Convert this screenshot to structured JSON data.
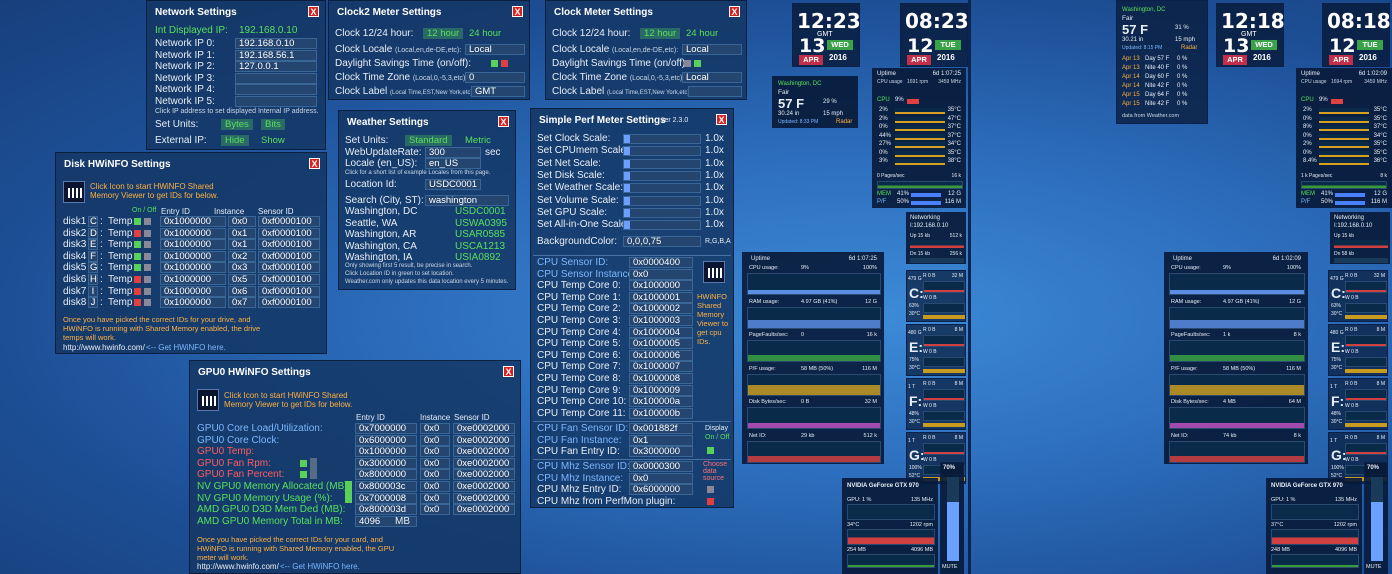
{
  "network": {
    "title": "Network Settings",
    "int_label": "Int Displayed IP:",
    "int_value": "192.168.0.10",
    "ip_labels": [
      "Network IP 0:",
      "Network IP 1:",
      "Network IP 2:",
      "Network IP 3:",
      "Network IP 4:",
      "Network IP 5:"
    ],
    "ip_values": [
      "192.168.0.10",
      "192.168.56.1",
      "127.0.0.1",
      "",
      "",
      ""
    ],
    "note": "Click IP address to set displayed Internal IP address.",
    "units_label": "Set Units:",
    "units_bytes": "Bytes",
    "units_bits": "Bits",
    "ext_label": "External IP:",
    "ext_hide": "Hide",
    "ext_show": "Show"
  },
  "clock2": {
    "title": "Clock2 Meter Settings",
    "hour_label": "Clock 12/24 hour:",
    "h12": "12 hour",
    "h24": "24 hour",
    "locale_label": "Clock Locale",
    "locale_hint": "(Local,en,de-DE,etc):",
    "locale_value": "Local",
    "dst_label": "Daylight Savings Time (on/off):",
    "tz_label": "Clock Time Zone",
    "tz_hint": "(Local,0,-5,3,etc):",
    "tz_value": "0",
    "clabel_label": "Clock Label",
    "clabel_hint": "(Local Time,EST,New York,etc):",
    "clabel_value": "GMT"
  },
  "clock1": {
    "title": "Clock Meter Settings",
    "hour_label": "Clock 12/24 hour:",
    "h12": "12 hour",
    "h24": "24 hour",
    "locale_label": "Clock Locale",
    "locale_hint": "(Local,en,de-DE,etc):",
    "locale_value": "Local",
    "dst_label": "Daylight Savings Time (on/off):",
    "tz_label": "Clock Time Zone",
    "tz_hint": "(Local,0,-5,3,etc):",
    "tz_value": "Local",
    "clabel_label": "Clock Label",
    "clabel_hint": "(Local Time,EST,New York,etc):",
    "clabel_value": ""
  },
  "weather": {
    "title": "Weather Settings",
    "units_label": "Set Units:",
    "units_std": "Standard",
    "units_metric": "Metric",
    "rate_label": "WebUpdateRate:",
    "rate_value": "300",
    "rate_unit": "sec",
    "locale_label": "Locale (en_US):",
    "locale_value": "en_US",
    "locale_note": "Click for a short list of example Locales from this page.",
    "loc_label": "Location Id:",
    "loc_value": "USDC0001",
    "search_label": "Search (City, ST):",
    "search_value": "washington",
    "results": [
      {
        "city": "Washington, DC",
        "id": "USDC0001"
      },
      {
        "city": "Seattle, WA",
        "id": "USWA0395"
      },
      {
        "city": "Washington, AR",
        "id": "USAR0585"
      },
      {
        "city": "Washington, CA",
        "id": "USCA1213"
      },
      {
        "city": "Washington, IA",
        "id": "USIA0892"
      }
    ],
    "notes": [
      "Only showing first 5 result, be precise in search.",
      "Click Location ID in green to set location.",
      "Weather.com only updates this data location every 5 minutes."
    ]
  },
  "perf": {
    "title": "Simple Perf Meter Settings",
    "version": "ver 2.3.0",
    "scales": [
      {
        "label": "Set Clock Scale:",
        "value": "1.0x"
      },
      {
        "label": "Set CPUmem Scale:",
        "value": "1.0x"
      },
      {
        "label": "Set Net Scale:",
        "value": "1.0x"
      },
      {
        "label": "Set Disk Scale:",
        "value": "1.0x"
      },
      {
        "label": "Set Weather Scale:",
        "value": "1.0x"
      },
      {
        "label": "Set Volume Scale:",
        "value": "1.0x"
      },
      {
        "label": "Set GPU Scale:",
        "value": "1.0x"
      },
      {
        "label": "Set All-in-One Scale:",
        "value": "1.0x"
      }
    ],
    "bg_label": "BackgroundColor:",
    "bg_value": "0,0,0,75",
    "bg_hint": "R,G,B,A",
    "sensors": [
      {
        "label": "CPU Sensor ID:",
        "value": "0x0000400",
        "c": "blue"
      },
      {
        "label": "CPU Sensor Instance:",
        "value": "0x0",
        "c": "blue"
      },
      {
        "label": "CPU Temp Core 0:",
        "value": "0x1000000",
        "c": ""
      },
      {
        "label": "CPU Temp Core 1:",
        "value": "0x1000001",
        "c": ""
      },
      {
        "label": "CPU Temp Core 2:",
        "value": "0x1000002",
        "c": ""
      },
      {
        "label": "CPU Temp Core 3:",
        "value": "0x1000003",
        "c": ""
      },
      {
        "label": "CPU Temp Core 4:",
        "value": "0x1000004",
        "c": ""
      },
      {
        "label": "CPU Temp Core 5:",
        "value": "0x1000005",
        "c": ""
      },
      {
        "label": "CPU Temp Core 6:",
        "value": "0x1000006",
        "c": ""
      },
      {
        "label": "CPU Temp Core 7:",
        "value": "0x1000007",
        "c": ""
      },
      {
        "label": "CPU Temp Core 8:",
        "value": "0x1000008",
        "c": ""
      },
      {
        "label": "CPU Temp Core 9:",
        "value": "0x1000009",
        "c": ""
      },
      {
        "label": "CPU Temp Core 10:",
        "value": "0x100000a",
        "c": ""
      },
      {
        "label": "CPU Temp Core 11:",
        "value": "0x100000b",
        "c": ""
      }
    ],
    "hw_text": "HWiNFO Shared Memory Viewer to get cpu IDs.",
    "fan": [
      {
        "label": "CPU Fan Sensor ID:",
        "value": "0x001882f",
        "c": "blue"
      },
      {
        "label": "CPU Fan Instance:",
        "value": "0x1",
        "c": "blue"
      },
      {
        "label": "CPU Fan Entry ID:",
        "value": "0x3000000",
        "c": ""
      }
    ],
    "display_label": "Display",
    "onoff": "On / Off",
    "mhz": [
      {
        "label": "CPU Mhz Sensor ID:",
        "value": "0x0000300",
        "c": "blue"
      },
      {
        "label": "CPU Mhz Instance:",
        "value": "0x0",
        "c": "blue"
      },
      {
        "label": "CPU Mhz Entry ID:",
        "value": "0x6000000",
        "c": ""
      },
      {
        "label": "CPU Mhz from PerfMon plugin:",
        "value": "",
        "c": ""
      }
    ],
    "choose": "Choose data source"
  },
  "disk": {
    "title": "Disk HWiNFO Settings",
    "click": "Click Icon to start HWiNFO Shared Memory Viewer to get IDs for below.",
    "onoff": "On / Off",
    "col_entry": "Entry ID",
    "col_inst": "Instance",
    "col_sensor": "Sensor ID",
    "rows": [
      {
        "name": "disk1",
        "letter": "C",
        "temp": "Temp",
        "entry": "0x1000000",
        "inst": "0x0",
        "sensor": "0xf0000100",
        "on": true
      },
      {
        "name": "disk2",
        "letter": "D",
        "temp": "Temp",
        "entry": "0x1000000",
        "inst": "0x1",
        "sensor": "0xf0000100",
        "on": false
      },
      {
        "name": "disk3",
        "letter": "E",
        "temp": "Temp",
        "entry": "0x1000000",
        "inst": "0x1",
        "sensor": "0xf0000100",
        "on": true
      },
      {
        "name": "disk4",
        "letter": "F",
        "temp": "Temp",
        "entry": "0x1000000",
        "inst": "0x2",
        "sensor": "0xf0000100",
        "on": true
      },
      {
        "name": "disk5",
        "letter": "G",
        "temp": "Temp",
        "entry": "0x1000000",
        "inst": "0x3",
        "sensor": "0xf0000100",
        "on": true
      },
      {
        "name": "disk6",
        "letter": "H",
        "temp": "Temp",
        "entry": "0x1000000",
        "inst": "0x5",
        "sensor": "0xf0000100",
        "on": false
      },
      {
        "name": "disk7",
        "letter": "I",
        "temp": "Temp",
        "entry": "0x1000000",
        "inst": "0x6",
        "sensor": "0xf0000100",
        "on": false
      },
      {
        "name": "disk8",
        "letter": "J",
        "temp": "Temp",
        "entry": "0x1000000",
        "inst": "0x7",
        "sensor": "0xf0000100",
        "on": false
      }
    ],
    "note": "Once you have picked the correct IDs for your drive, and HWiNFO is running with Shared Memory enabled, the drive temps will work.",
    "url": "http://www.hwinfo.com/",
    "get": "<-- Get HWiNFO here."
  },
  "gpu": {
    "title": "GPU0 HWiNFO Settings",
    "click": "Click Icon to start HWiNFO Shared Memory Viewer to get IDs for below.",
    "col_entry": "Entry ID",
    "col_inst": "Instance",
    "col_sensor": "Sensor ID",
    "rows": [
      {
        "label": "GPU0 Core Load/Utilization:",
        "entry": "0x7000000",
        "inst": "0x0",
        "sensor": "0xe0002000",
        "c": "blue"
      },
      {
        "label": "GPU0 Core Clock:",
        "entry": "0x6000000",
        "inst": "0x0",
        "sensor": "0xe0002000",
        "c": "blue"
      },
      {
        "label": "GPU0 Temp:",
        "entry": "0x1000000",
        "inst": "0x0",
        "sensor": "0xe0002000",
        "c": "red"
      },
      {
        "label": "GPU0 Fan Rpm:",
        "entry": "0x3000000",
        "inst": "0x0",
        "sensor": "0xe0002000",
        "c": "red"
      },
      {
        "label": "GPU0 Fan Percent:",
        "entry": "0x8000000",
        "inst": "0x0",
        "sensor": "0xe0002000",
        "c": "red"
      },
      {
        "label": "NV GPU0 Memory Allocated (MB):",
        "entry": "0x800003c",
        "inst": "0x0",
        "sensor": "0xe0002000",
        "c": "green"
      },
      {
        "label": "NV GPU0 Memory Usage (%):",
        "entry": "0x7000008",
        "inst": "0x0",
        "sensor": "0xe0002000",
        "c": "green"
      },
      {
        "label": "AMD GPU0 D3D Mem Ded (MB):",
        "entry": "0x800003d",
        "inst": "0x0",
        "sensor": "0xe0002000",
        "c": "green"
      },
      {
        "label": "AMD GPU0 Memory Total in MB:",
        "entry": "4096",
        "inst": "MB",
        "sensor": "",
        "c": "green"
      }
    ],
    "note": "Once you have picked the correct IDs for your card, and HWiNFO is running with Shared Memory enabled, the GPU meter will work.",
    "url": "http://www.hwinfo.com/",
    "get": "<-- Get HWiNFO here."
  },
  "clocks": [
    {
      "time": "12:23",
      "label": "GMT",
      "day": "13",
      "month": "APR",
      "dow": "WED",
      "year": "2016"
    },
    {
      "time": "08:23",
      "label": "",
      "day": "12",
      "month": "APR",
      "dow": "TUE",
      "year": "2016"
    },
    {
      "time": "12:18",
      "label": "GMT",
      "day": "13",
      "month": "APR",
      "dow": "WED",
      "year": "2016"
    },
    {
      "time": "08:18",
      "label": "",
      "day": "12",
      "month": "APR",
      "dow": "TUE",
      "year": "2016"
    }
  ],
  "weather_widgets": [
    {
      "city": "Washington, DC",
      "cond": "Fair",
      "temp": "57 F",
      "hum": "29 %",
      "press": "30.24 in",
      "wind": "15 mph",
      "updated": "Updated: 8:33 PM",
      "radar": "Radar"
    },
    {
      "city": "Washington, DC",
      "cond": "Fair",
      "temp": "57 F",
      "hum": "31 %",
      "press": "30.21 in",
      "wind": "15 mph",
      "updated": "Updated: 8:15 PM",
      "radar": "Radar"
    }
  ],
  "forecast": [
    {
      "d": "Apr 13",
      "t": "Day 57 F",
      "p": "0 %"
    },
    {
      "d": "Apr 13",
      "t": "Nite 40 F",
      "p": "0 %"
    },
    {
      "d": "Apr 14",
      "t": "Day 60 F",
      "p": "0 %"
    },
    {
      "d": "Apr 14",
      "t": "Nite 42 F",
      "p": "0 %"
    },
    {
      "d": "Apr 15",
      "t": "Day 64 F",
      "p": "0 %"
    },
    {
      "d": "Apr 15",
      "t": "Nite 42 F",
      "p": "0 %"
    }
  ],
  "forecast_src": "data from Weather.com",
  "cpu_widgets": [
    {
      "uptime": "Uptime",
      "up": "6d 1:07:25",
      "usage_lbl": "CPU usage",
      "rpm": "1691 rpm",
      "mhz": "3459 MHz",
      "cpu": "CPU",
      "cpu_pct": "9%",
      "cores": [
        {
          "p": "2%",
          "t": "35°C"
        },
        {
          "p": "2%",
          "t": "47°C"
        },
        {
          "p": "0%",
          "t": "37°C"
        },
        {
          "p": "44%",
          "t": "37°C"
        },
        {
          "p": "27%",
          "t": "34°C"
        },
        {
          "p": "0%",
          "t": "35°C"
        },
        {
          "p": "3%",
          "t": "38°C"
        }
      ],
      "pages": "0 Pages/sec",
      "pages_v": "16 k",
      "mem": "MEM",
      "mem_pct": "41%",
      "mem_v": "12 G",
      "pf": "P/F",
      "pf_pct": "50%",
      "pf_v": "116 M"
    },
    {
      "uptime": "Uptime",
      "up": "6d 1:02:09",
      "usage_lbl": "CPU usage",
      "rpm": "1694 rpm",
      "mhz": "3459 MHz",
      "cpu": "CPU",
      "cpu_pct": "9%",
      "cores": [
        {
          "p": "2%",
          "t": "35°C"
        },
        {
          "p": "0%",
          "t": "35°C"
        },
        {
          "p": "8%",
          "t": "37°C"
        },
        {
          "p": "0%",
          "t": "34°C"
        },
        {
          "p": "2%",
          "t": "35°C"
        },
        {
          "p": "0%",
          "t": "35°C"
        },
        {
          "p": "8.4%",
          "t": "36°C"
        }
      ],
      "pages": "1 k Pages/sec",
      "pages_v": "8 k",
      "mem": "MEM",
      "mem_pct": "41%",
      "mem_v": "12 G",
      "pf": "P/F",
      "pf_pct": "50%",
      "pf_v": "116 M"
    }
  ],
  "net_widgets": [
    {
      "title": "Networking",
      "ip": "I:192.168.0.10",
      "up": "Up 15 kb",
      "up_v": "512 k",
      "dn": "Dn 15 kb",
      "dn_v": "256 k"
    },
    {
      "title": "Networking",
      "ip": "I:192.168.0.10",
      "up": "Up 15 kb",
      "up_v": "",
      "dn": "Dn 58 kb",
      "dn_v": ""
    }
  ],
  "aio": [
    {
      "uptime": "Uptime",
      "up": "6d 1:07:25",
      "cpu_lbl": "CPU usage:",
      "cpu_v": "9%",
      "cpu_max": "100%",
      "ram_lbl": "RAM usage:",
      "ram_v": "4.97 GB (41%)",
      "ram_max": "12 G",
      "pf_lbl": "PageFaults/sec:",
      "pf_v": "0",
      "pf_max": "16 k",
      "pfu_lbl": "P/F usage:",
      "pfu_v": "58 MB (50%)",
      "pfu_max": "116 M",
      "disk_lbl": "Disk Bytes/sec:",
      "disk_v": "0 B",
      "disk_max": "32 M",
      "net_lbl": "Net IO:",
      "net_v": "29 kb",
      "net_max": "512 k"
    },
    {
      "uptime": "Uptime",
      "up": "6d 1:02:09",
      "cpu_lbl": "CPU usage:",
      "cpu_v": "9%",
      "cpu_max": "100%",
      "ram_lbl": "RAM usage:",
      "ram_v": "4.97 GB (41%)",
      "ram_max": "12 G",
      "pf_lbl": "PageFaults/sec:",
      "pf_v": "1 k",
      "pf_max": "8 k",
      "pfu_lbl": "P/F usage:",
      "pfu_v": "58 MB (50%)",
      "pfu_max": "116 M",
      "disk_lbl": "Disk Bytes/sec:",
      "disk_v": "4 MB",
      "disk_max": "64 M",
      "net_lbl": "Net IO:",
      "net_v": "74 kb",
      "net_max": "8 k"
    }
  ],
  "drives": [
    {
      "letter": "C:",
      "size": "479 G",
      "pct": "63%",
      "temp": "30°C",
      "r": "R 0 B",
      "w": "W 0 B",
      "max": "32 M"
    },
    {
      "letter": "E:",
      "size": "480 G",
      "pct": "75%",
      "temp": "30°C",
      "r": "R 0 B",
      "w": "W 0 B",
      "max": "8 M"
    },
    {
      "letter": "F:",
      "size": "1 T",
      "pct": "48%",
      "temp": "30°C",
      "r": "R 0 B",
      "w": "W 0 B",
      "max": "8 M"
    },
    {
      "letter": "G:",
      "size": "1 T",
      "pct": "100%",
      "temp": "52°C",
      "r": "R 0 B",
      "w": "W 0 B",
      "max": "8 M"
    }
  ],
  "gpu_widgets": [
    {
      "name": "NVIDIA GeForce GTX 970",
      "gpu": "GPU: 1 %",
      "mhz": "135 MHz",
      "temp": "34°C",
      "rpm": "1202 rpm",
      "mem": "254 MB",
      "mem_max": "4096 MB"
    },
    {
      "name": "NVIDIA GeForce GTX 970",
      "gpu": "GPU: 1 %",
      "mhz": "135 MHz",
      "temp": "37°C",
      "rpm": "1202 rpm",
      "mem": "248 MB",
      "mem_max": "4096 MB"
    }
  ],
  "volume": [
    {
      "pct": "70%",
      "mute": "MUTE"
    },
    {
      "pct": "70%",
      "mute": "MUTE"
    }
  ],
  "colors": {
    "accent_green": "#58e05a",
    "link_blue": "#7db7ff",
    "warn_red": "#ff5c5c",
    "bar_blue": "#6aa0ff",
    "apr_red": "#c0304a",
    "day_green": "#3aa34a"
  }
}
